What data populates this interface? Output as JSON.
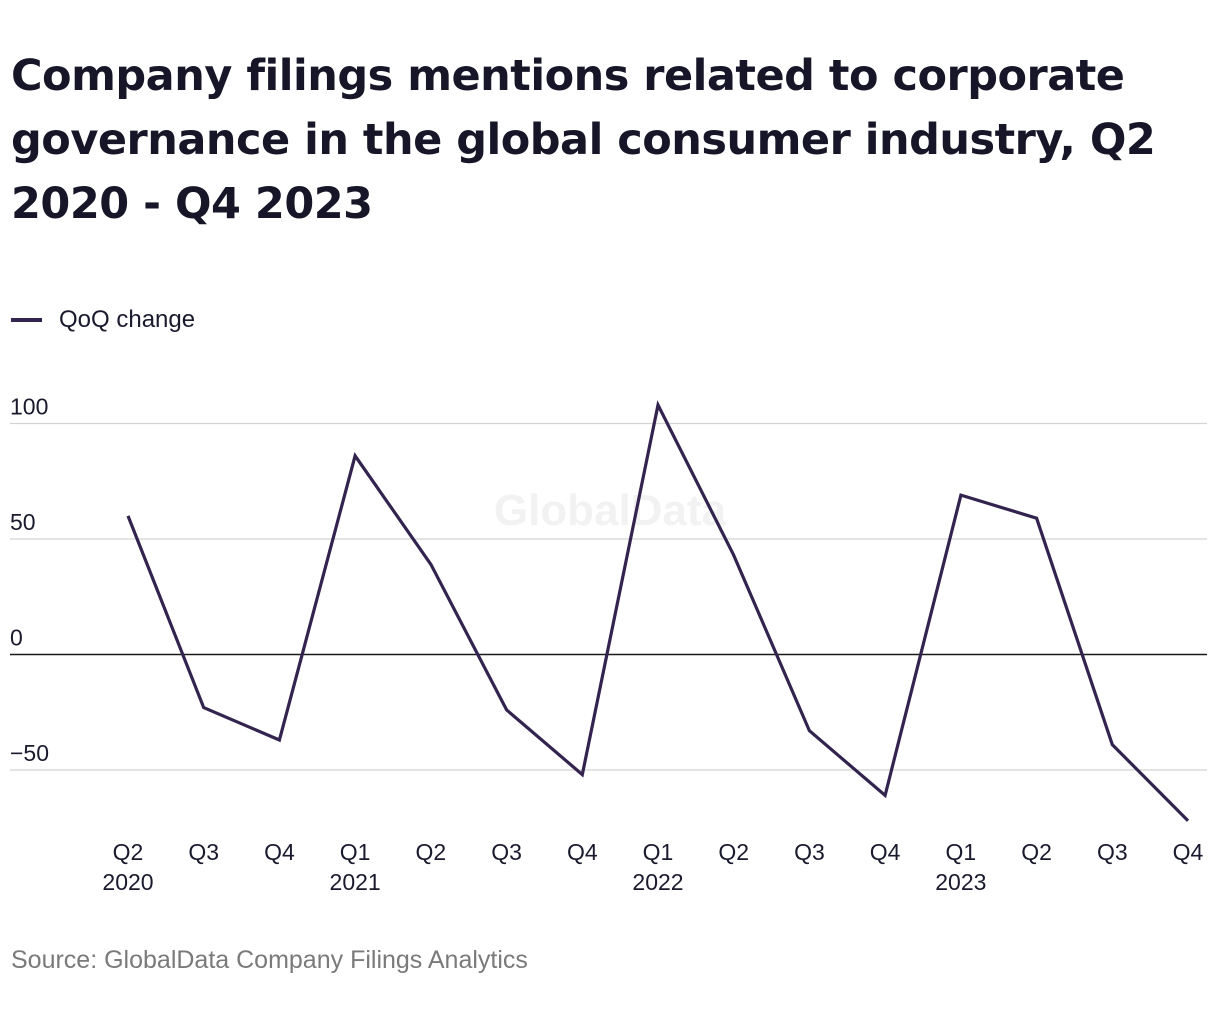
{
  "title": "Company filings mentions related to corporate governance in the global consumer industry, Q2 2020 - Q4 2023",
  "legend": {
    "label": "QoQ change",
    "color": "#33234f"
  },
  "watermark": "GlobalData",
  "source": "Source: GlobalData Company Filings Analytics",
  "chart_data": {
    "type": "line",
    "categories": [
      "Q2 2020",
      "Q3 2020",
      "Q4 2020",
      "Q1 2021",
      "Q2 2021",
      "Q3 2021",
      "Q4 2021",
      "Q1 2022",
      "Q2 2022",
      "Q3 2022",
      "Q4 2022",
      "Q1 2023",
      "Q2 2023",
      "Q3 2023",
      "Q4 2023"
    ],
    "tick_labels": [
      {
        "quarter": "Q2",
        "year": "2020"
      },
      {
        "quarter": "Q3",
        "year": ""
      },
      {
        "quarter": "Q4",
        "year": ""
      },
      {
        "quarter": "Q1",
        "year": "2021"
      },
      {
        "quarter": "Q2",
        "year": ""
      },
      {
        "quarter": "Q3",
        "year": ""
      },
      {
        "quarter": "Q4",
        "year": ""
      },
      {
        "quarter": "Q1",
        "year": "2022"
      },
      {
        "quarter": "Q2",
        "year": ""
      },
      {
        "quarter": "Q3",
        "year": ""
      },
      {
        "quarter": "Q4",
        "year": ""
      },
      {
        "quarter": "Q1",
        "year": "2023"
      },
      {
        "quarter": "Q2",
        "year": ""
      },
      {
        "quarter": "Q3",
        "year": ""
      },
      {
        "quarter": "Q4",
        "year": ""
      }
    ],
    "series": [
      {
        "name": "QoQ change",
        "color": "#33234f",
        "values": [
          60,
          -23,
          -37,
          86,
          39,
          -24,
          -52,
          108,
          43,
          -33,
          -61,
          69,
          59,
          -39,
          -72
        ]
      }
    ],
    "y_ticks": [
      {
        "value": 100,
        "label": "100"
      },
      {
        "value": 50,
        "label": "50"
      },
      {
        "value": 0,
        "label": "0"
      },
      {
        "value": -50,
        "label": "−50"
      }
    ],
    "ylim": [
      -82,
      118
    ],
    "grid": true,
    "legend_position": "top-left"
  }
}
